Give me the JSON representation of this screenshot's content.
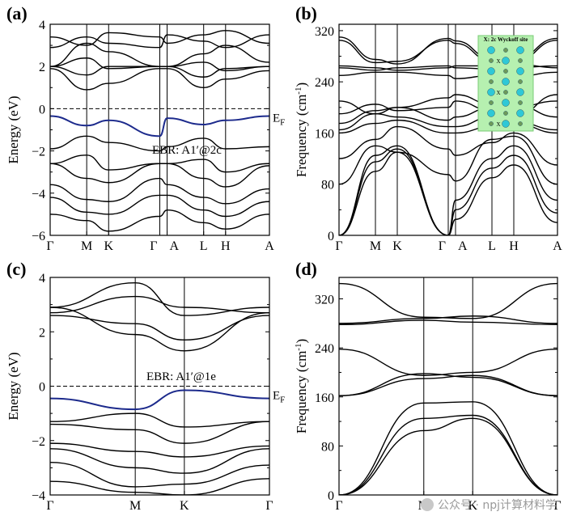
{
  "watermark": "公众号 · npj计算材料学",
  "chart_data": [
    {
      "panel": "(a)",
      "type": "line",
      "title": "",
      "ylabel": "Energy (eV)",
      "ylim": [
        -6,
        4
      ],
      "yticks": [
        -6,
        -4,
        -2,
        0,
        2,
        4
      ],
      "x_points": [
        0,
        1,
        1.6,
        3,
        3.2,
        4.2,
        4.8,
        6
      ],
      "x_labels": [
        "Γ",
        "M",
        "K",
        "Γ",
        "A",
        "L",
        "H",
        "A"
      ],
      "fermi_level": 0,
      "fermi_label": "EF",
      "annotation": "EBR: A1′@2c",
      "highlight_color": "#1c2a8c",
      "highlight_band": [
        -0.35,
        -0.8,
        -0.55,
        -1.3,
        -0.45,
        -0.75,
        -0.55,
        -0.35
      ],
      "bands": [
        [
          3.4,
          3.0,
          3.6,
          3.4,
          3.1,
          3.5,
          3.7,
          3.1
        ],
        [
          2.9,
          3.4,
          3.1,
          2.9,
          3.5,
          3.2,
          2.9,
          3.5
        ],
        [
          2.0,
          3.1,
          2.7,
          2.0,
          2.0,
          2.6,
          3.0,
          2.2
        ],
        [
          2.0,
          2.4,
          1.9,
          2.0,
          2.0,
          2.2,
          1.8,
          2.0
        ],
        [
          2.0,
          1.6,
          2.0,
          2.0,
          2.0,
          1.5,
          1.9,
          2.0
        ],
        [
          1.9,
          0.9,
          1.2,
          1.9,
          1.9,
          1.0,
          1.4,
          1.8
        ],
        [
          -1.9,
          -1.3,
          -1.6,
          -2.0,
          -1.8,
          -1.4,
          -1.9,
          -1.8
        ],
        [
          -2.6,
          -2.2,
          -2.9,
          -2.6,
          -2.6,
          -2.4,
          -3.0,
          -2.6
        ],
        [
          -2.6,
          -3.3,
          -3.5,
          -2.6,
          -2.6,
          -3.3,
          -3.7,
          -2.7
        ],
        [
          -3.6,
          -4.3,
          -4.4,
          -3.3,
          -3.6,
          -4.2,
          -4.5,
          -3.8
        ],
        [
          -4.2,
          -4.9,
          -5.0,
          -4.1,
          -4.1,
          -4.8,
          -5.1,
          -4.4
        ],
        [
          -5.0,
          -5.3,
          -5.8,
          -5.1,
          -4.8,
          -5.4,
          -5.7,
          -5.0
        ]
      ]
    },
    {
      "panel": "(b)",
      "type": "line",
      "title": "",
      "ylabel": "Frequency (cm⁻¹)",
      "ylim": [
        0,
        330
      ],
      "yticks": [
        0,
        80,
        160,
        240,
        320
      ],
      "x_points": [
        0,
        1,
        1.6,
        3,
        3.2,
        4.2,
        4.8,
        6
      ],
      "x_labels": [
        "Γ",
        "M",
        "K",
        "Γ",
        "A",
        "L",
        "H",
        "A"
      ],
      "inset_label": "X: 2c Wyckoff site",
      "inset_atom_label": "X",
      "bands": [
        [
          0,
          100,
          130,
          0,
          25,
          90,
          110,
          20
        ],
        [
          0,
          115,
          135,
          0,
          40,
          105,
          125,
          35
        ],
        [
          0,
          125,
          140,
          0,
          55,
          120,
          140,
          55
        ],
        [
          80,
          140,
          130,
          95,
          85,
          150,
          155,
          80
        ],
        [
          120,
          150,
          170,
          135,
          125,
          145,
          160,
          110
        ],
        [
          160,
          175,
          180,
          160,
          160,
          170,
          175,
          160
        ],
        [
          165,
          190,
          185,
          170,
          170,
          185,
          178,
          165
        ],
        [
          175,
          195,
          200,
          180,
          185,
          200,
          205,
          185
        ],
        [
          190,
          205,
          195,
          200,
          210,
          195,
          200,
          210
        ],
        [
          210,
          190,
          200,
          215,
          220,
          205,
          185,
          220
        ],
        [
          250,
          255,
          255,
          250,
          245,
          250,
          248,
          255
        ],
        [
          262,
          258,
          262,
          265,
          262,
          260,
          262,
          265
        ],
        [
          265,
          262,
          258,
          262,
          265,
          265,
          268,
          262
        ],
        [
          305,
          270,
          272,
          305,
          300,
          272,
          270,
          305
        ],
        [
          310,
          275,
          268,
          308,
          304,
          276,
          274,
          308
        ]
      ]
    },
    {
      "panel": "(c)",
      "type": "line",
      "title": "",
      "ylabel": "Energy (eV)",
      "ylim": [
        -4,
        4
      ],
      "yticks": [
        -4,
        -2,
        0,
        2,
        4
      ],
      "x_points": [
        0,
        1,
        1.577,
        2.577
      ],
      "x_labels": [
        "Γ",
        "M",
        "K",
        "Γ"
      ],
      "fermi_level": 0,
      "fermi_label": "EF",
      "annotation": "EBR: A1′@1e",
      "highlight_color": "#1c2a8c",
      "highlight_band": [
        -0.45,
        -0.85,
        -0.15,
        -0.45
      ],
      "bands": [
        [
          2.9,
          3.8,
          2.6,
          2.9
        ],
        [
          2.7,
          3.3,
          2.9,
          2.7
        ],
        [
          2.6,
          2.3,
          1.7,
          2.6
        ],
        [
          2.9,
          1.9,
          1.3,
          2.7
        ],
        [
          -1.3,
          -1.0,
          -1.5,
          -1.3
        ],
        [
          -1.4,
          -1.6,
          -2.1,
          -1.3
        ],
        [
          -2.1,
          -2.4,
          -2.6,
          -2.2
        ],
        [
          -2.3,
          -3.0,
          -3.2,
          -2.3
        ],
        [
          -2.8,
          -3.7,
          -3.6,
          -2.9
        ],
        [
          -3.5,
          -3.9,
          -4.0,
          -3.4
        ]
      ]
    },
    {
      "panel": "(d)",
      "type": "line",
      "title": "",
      "ylabel": "Frequency (cm⁻¹)",
      "ylim": [
        0,
        355
      ],
      "yticks": [
        0,
        80,
        160,
        240,
        320
      ],
      "x_points": [
        0,
        1,
        1.577,
        2.577
      ],
      "x_labels": [
        "Γ",
        "M",
        "K",
        "Γ"
      ],
      "bands": [
        [
          0,
          105,
          125,
          0
        ],
        [
          0,
          125,
          130,
          0
        ],
        [
          0,
          150,
          152,
          0
        ],
        [
          162,
          190,
          195,
          162
        ],
        [
          162,
          198,
          192,
          162
        ],
        [
          238,
          195,
          200,
          238
        ],
        [
          278,
          285,
          282,
          278
        ],
        [
          280,
          288,
          292,
          280
        ],
        [
          345,
          290,
          288,
          345
        ]
      ]
    }
  ]
}
